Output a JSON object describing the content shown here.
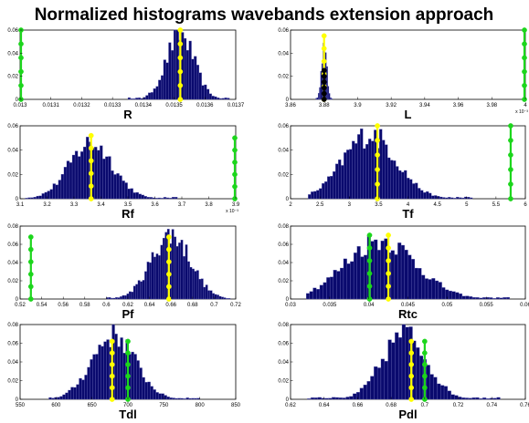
{
  "figure": {
    "title": "Normalized histograms wavebands extension approach"
  },
  "colors": {
    "bars": "#0a0a6e",
    "bar_edge": "#6d6dbb",
    "yellow_marker": "#ffff00",
    "green_marker": "#1cd61c",
    "black_marker": "#000000"
  },
  "chart_data": [
    {
      "type": "bar",
      "name": "R",
      "xlabel": "R",
      "xlim": [
        0.013,
        0.0137
      ],
      "ylim": [
        0,
        0.06
      ],
      "xticks": [
        "0.013",
        "0.0131",
        "0.0132",
        "0.0133",
        "0.0134",
        "0.0135",
        "0.0136",
        "0.0137"
      ],
      "yticks": [
        "0",
        "0.02",
        "0.04",
        "0.06"
      ],
      "exponent": "",
      "hist": {
        "center": 0.01352,
        "sd": 4.5e-05,
        "peak": 0.057,
        "bins": 40,
        "lo": 0.01335,
        "hi": 0.01368
      },
      "markers": [
        {
          "color": "yellow",
          "x": 0.01352,
          "height": 0.06
        },
        {
          "color": "green",
          "x": 0.013,
          "height": 0.06
        }
      ]
    },
    {
      "type": "bar",
      "name": "L",
      "xlabel": "L",
      "xlim": [
        3.86,
        4.0
      ],
      "ylim": [
        0,
        0.06
      ],
      "xticks": [
        "3.86",
        "3.88",
        "3.9",
        "3.92",
        "3.94",
        "3.96",
        "3.98",
        "4"
      ],
      "yticks": [
        "0",
        "0.02",
        "0.04",
        "0.06"
      ],
      "exponent": "x 10⁻³",
      "hist": {
        "center": 3.88,
        "sd": 0.0015,
        "peak": 0.05,
        "bins": 14,
        "lo": 3.875,
        "hi": 3.885
      },
      "markers": [
        {
          "color": "yellow",
          "x": 3.88,
          "height": 0.055
        },
        {
          "color": "black",
          "x": 3.88,
          "height": 0.025
        },
        {
          "color": "green",
          "x": 4.0,
          "height": 0.06
        }
      ]
    },
    {
      "type": "bar",
      "name": "Rf",
      "xlabel": "Rf",
      "xlim": [
        3.1,
        3.95
      ],
      "ylim": [
        0,
        0.06
      ],
      "xticks": [
        "3.1",
        "3.2",
        "3.3",
        "3.4",
        "3.5",
        "3.6",
        "3.7",
        "3.8",
        "3.9"
      ],
      "yticks": [
        "0",
        "0.02",
        "0.04",
        "0.06"
      ],
      "exponent": "x 10⁻³",
      "hist": {
        "center": 3.38,
        "sd": 0.085,
        "peak": 0.047,
        "bins": 55,
        "lo": 3.12,
        "hi": 3.72
      },
      "markers": [
        {
          "color": "yellow",
          "x": 3.38,
          "height": 0.052
        },
        {
          "color": "green",
          "x": 3.95,
          "height": 0.05
        }
      ]
    },
    {
      "type": "bar",
      "name": "Tf",
      "xlabel": "Tf",
      "xlim": [
        2.0,
        6.0
      ],
      "ylim": [
        0,
        0.06
      ],
      "xticks": [
        "2",
        "2.5",
        "3",
        "3.5",
        "4",
        "4.5",
        "5",
        "5.5",
        "6"
      ],
      "yticks": [
        "0",
        "0.02",
        "0.04",
        "0.06"
      ],
      "exponent": "",
      "hist": {
        "center": 3.35,
        "sd": 0.45,
        "peak": 0.054,
        "bins": 60,
        "lo": 2.3,
        "hi": 5.1
      },
      "markers": [
        {
          "color": "yellow",
          "x": 3.48,
          "height": 0.06
        },
        {
          "color": "green",
          "x": 5.75,
          "height": 0.06
        }
      ]
    },
    {
      "type": "bar",
      "name": "Pf",
      "xlabel": "Pf",
      "xlim": [
        0.52,
        0.72
      ],
      "ylim": [
        0,
        0.08
      ],
      "xticks": [
        "0.52",
        "0.54",
        "0.56",
        "0.58",
        "0.6",
        "0.62",
        "0.64",
        "0.66",
        "0.68",
        "0.7",
        "0.72"
      ],
      "yticks": [
        "0",
        "0.02",
        "0.04",
        "0.06",
        "0.08"
      ],
      "exponent": "",
      "hist": {
        "center": 0.66,
        "sd": 0.018,
        "peak": 0.072,
        "bins": 55,
        "lo": 0.6,
        "hi": 0.715
      },
      "markers": [
        {
          "color": "yellow",
          "x": 0.658,
          "height": 0.068
        },
        {
          "color": "green",
          "x": 0.53,
          "height": 0.068
        }
      ]
    },
    {
      "type": "bar",
      "name": "Rtc",
      "xlabel": "Rtc",
      "xlim": [
        0.03,
        0.06
      ],
      "ylim": [
        0,
        0.08
      ],
      "xticks": [
        "0.03",
        "0.035",
        "0.04",
        "0.045",
        "0.05",
        "0.055",
        "0.06"
      ],
      "yticks": [
        "0",
        "0.02",
        "0.04",
        "0.06",
        "0.08"
      ],
      "exponent": "",
      "hist": {
        "center": 0.0415,
        "sd": 0.0045,
        "peak": 0.066,
        "bins": 60,
        "lo": 0.032,
        "hi": 0.058
      },
      "markers": [
        {
          "color": "yellow",
          "x": 0.0425,
          "height": 0.07
        },
        {
          "color": "green",
          "x": 0.0401,
          "height": 0.07
        }
      ]
    },
    {
      "type": "bar",
      "name": "Tdl",
      "xlabel": "Tdl",
      "xlim": [
        550,
        850
      ],
      "ylim": [
        0,
        0.08
      ],
      "xticks": [
        "550",
        "600",
        "650",
        "700",
        "750",
        "800",
        "850"
      ],
      "yticks": [
        "0",
        "0.02",
        "0.04",
        "0.06",
        "0.08"
      ],
      "exponent": "",
      "hist": {
        "center": 680,
        "sd": 30,
        "peak": 0.07,
        "bins": 55,
        "lo": 590,
        "hi": 800
      },
      "markers": [
        {
          "color": "yellow",
          "x": 678,
          "height": 0.062
        },
        {
          "color": "green",
          "x": 700,
          "height": 0.062
        }
      ]
    },
    {
      "type": "bar",
      "name": "Pdl",
      "xlabel": "Pdl",
      "xlim": [
        0.62,
        0.76
      ],
      "ylim": [
        0,
        0.08
      ],
      "xticks": [
        "0.62",
        "0.64",
        "0.66",
        "0.68",
        "0.7",
        "0.72",
        "0.74",
        "0.76"
      ],
      "yticks": [
        "0",
        "0.02",
        "0.04",
        "0.06",
        "0.08"
      ],
      "exponent": "",
      "hist": {
        "center": 0.688,
        "sd": 0.013,
        "peak": 0.072,
        "bins": 55,
        "lo": 0.63,
        "hi": 0.745
      },
      "markers": [
        {
          "color": "yellow",
          "x": 0.692,
          "height": 0.062
        },
        {
          "color": "green",
          "x": 0.7,
          "height": 0.062
        }
      ]
    }
  ]
}
